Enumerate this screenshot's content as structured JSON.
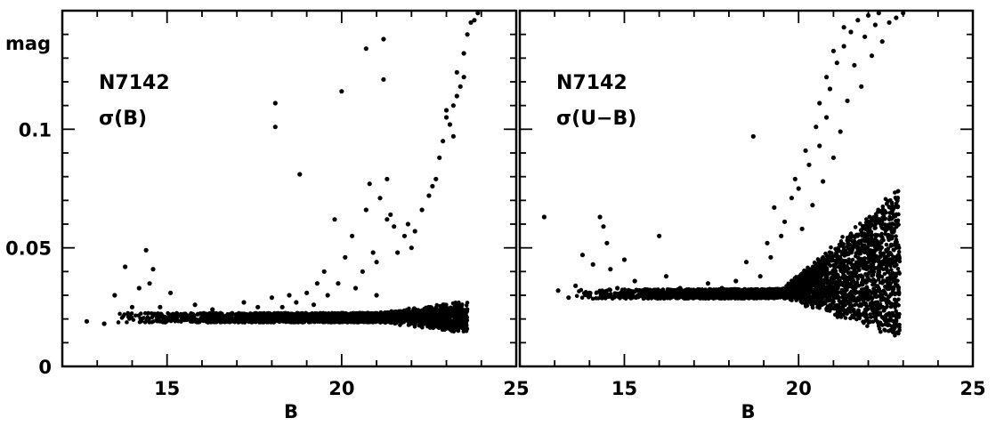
{
  "chart_data": [
    {
      "type": "scatter",
      "panel": "left",
      "annotation": [
        "N7142",
        "σ(B)"
      ],
      "xlabel": "B",
      "ylabel": "mag",
      "xlim": [
        12,
        25
      ],
      "ylim": [
        0,
        0.15
      ],
      "xticks": [
        15,
        20,
        25
      ],
      "yticks": [
        0,
        0.05,
        0.1
      ],
      "ytick_labels": [
        "0",
        "0.05",
        "0.1"
      ],
      "series": [
        {
          "points": [
            [
              12.7,
              0.019
            ],
            [
              13.2,
              0.018
            ],
            [
              13.5,
              0.03
            ],
            [
              13.8,
              0.042
            ],
            [
              14.0,
              0.025
            ],
            [
              14.2,
              0.033
            ],
            [
              14.4,
              0.049
            ],
            [
              14.5,
              0.035
            ],
            [
              14.6,
              0.041
            ],
            [
              14.8,
              0.025
            ],
            [
              15.1,
              0.031
            ],
            [
              15.4,
              0.022
            ],
            [
              15.8,
              0.026
            ],
            [
              16.3,
              0.024
            ],
            [
              16.7,
              0.021
            ],
            [
              17.2,
              0.027
            ],
            [
              17.6,
              0.025
            ],
            [
              18.0,
              0.029
            ],
            [
              18.1,
              0.111
            ],
            [
              18.1,
              0.101
            ],
            [
              18.3,
              0.025
            ],
            [
              18.5,
              0.03
            ],
            [
              18.7,
              0.027
            ],
            [
              18.8,
              0.081
            ],
            [
              19.0,
              0.031
            ],
            [
              19.2,
              0.026
            ],
            [
              19.3,
              0.035
            ],
            [
              19.5,
              0.04
            ],
            [
              19.6,
              0.03
            ],
            [
              19.8,
              0.062
            ],
            [
              19.9,
              0.035
            ],
            [
              20.0,
              0.116
            ],
            [
              20.1,
              0.046
            ],
            [
              20.3,
              0.055
            ],
            [
              20.4,
              0.033
            ],
            [
              20.6,
              0.04
            ],
            [
              20.7,
              0.066
            ],
            [
              20.7,
              0.134
            ],
            [
              20.8,
              0.077
            ],
            [
              20.9,
              0.048
            ],
            [
              21.0,
              0.044
            ],
            [
              21.0,
              0.03
            ],
            [
              21.1,
              0.071
            ],
            [
              21.2,
              0.121
            ],
            [
              21.2,
              0.138
            ],
            [
              21.3,
              0.079
            ],
            [
              21.3,
              0.062
            ],
            [
              21.4,
              0.064
            ],
            [
              21.5,
              0.059
            ],
            [
              21.6,
              0.048
            ],
            [
              21.8,
              0.055
            ],
            [
              21.9,
              0.06
            ],
            [
              22.0,
              0.05
            ],
            [
              22.1,
              0.057
            ],
            [
              22.3,
              0.066
            ],
            [
              22.5,
              0.072
            ],
            [
              22.6,
              0.076
            ],
            [
              22.7,
              0.079
            ],
            [
              22.8,
              0.088
            ],
            [
              22.9,
              0.095
            ],
            [
              23.0,
              0.105
            ],
            [
              23.0,
              0.108
            ],
            [
              23.1,
              0.102
            ],
            [
              23.2,
              0.097
            ],
            [
              23.2,
              0.11
            ],
            [
              23.3,
              0.114
            ],
            [
              23.3,
              0.124
            ],
            [
              23.4,
              0.118
            ],
            [
              23.5,
              0.122
            ],
            [
              23.5,
              0.132
            ],
            [
              23.6,
              0.14
            ],
            [
              23.7,
              0.145
            ],
            [
              23.8,
              0.146
            ],
            [
              23.9,
              0.149
            ]
          ]
        }
      ]
    },
    {
      "type": "scatter",
      "panel": "right",
      "annotation": [
        "N7142",
        "σ(U−B)"
      ],
      "xlabel": "B",
      "ylabel": "",
      "xlim": [
        12,
        25
      ],
      "ylim": [
        0,
        0.15
      ],
      "xticks": [
        15,
        20,
        25
      ],
      "yticks": [
        0,
        0.05,
        0.1
      ],
      "series": [
        {
          "points": [
            [
              12.7,
              0.063
            ],
            [
              13.1,
              0.032
            ],
            [
              13.4,
              0.029
            ],
            [
              13.6,
              0.034
            ],
            [
              13.8,
              0.047
            ],
            [
              14.0,
              0.031
            ],
            [
              14.1,
              0.043
            ],
            [
              14.3,
              0.063
            ],
            [
              14.4,
              0.059
            ],
            [
              14.5,
              0.052
            ],
            [
              14.6,
              0.041
            ],
            [
              14.8,
              0.033
            ],
            [
              15.0,
              0.045
            ],
            [
              15.3,
              0.036
            ],
            [
              15.7,
              0.03
            ],
            [
              16.0,
              0.055
            ],
            [
              16.2,
              0.038
            ],
            [
              16.6,
              0.033
            ],
            [
              17.0,
              0.031
            ],
            [
              17.4,
              0.035
            ],
            [
              17.8,
              0.033
            ],
            [
              18.2,
              0.036
            ],
            [
              18.5,
              0.044
            ],
            [
              18.7,
              0.097
            ],
            [
              18.9,
              0.038
            ],
            [
              19.1,
              0.052
            ],
            [
              19.2,
              0.046
            ],
            [
              19.3,
              0.067
            ],
            [
              19.5,
              0.055
            ],
            [
              19.6,
              0.061
            ],
            [
              19.8,
              0.071
            ],
            [
              19.9,
              0.079
            ],
            [
              20.0,
              0.075
            ],
            [
              20.1,
              0.058
            ],
            [
              20.2,
              0.091
            ],
            [
              20.3,
              0.085
            ],
            [
              20.4,
              0.068
            ],
            [
              20.5,
              0.101
            ],
            [
              20.6,
              0.093
            ],
            [
              20.6,
              0.111
            ],
            [
              20.7,
              0.078
            ],
            [
              20.8,
              0.105
            ],
            [
              20.8,
              0.122
            ],
            [
              20.9,
              0.117
            ],
            [
              21.0,
              0.088
            ],
            [
              21.0,
              0.133
            ],
            [
              21.1,
              0.128
            ],
            [
              21.2,
              0.099
            ],
            [
              21.3,
              0.135
            ],
            [
              21.3,
              0.143
            ],
            [
              21.4,
              0.112
            ],
            [
              21.5,
              0.141
            ],
            [
              21.6,
              0.127
            ],
            [
              21.7,
              0.146
            ],
            [
              21.8,
              0.118
            ],
            [
              21.9,
              0.139
            ],
            [
              22.0,
              0.148
            ],
            [
              22.1,
              0.131
            ],
            [
              22.2,
              0.144
            ],
            [
              22.3,
              0.149
            ],
            [
              22.4,
              0.137
            ],
            [
              22.6,
              0.145
            ],
            [
              22.8,
              0.147
            ],
            [
              23.0,
              0.149
            ]
          ]
        }
      ]
    }
  ]
}
